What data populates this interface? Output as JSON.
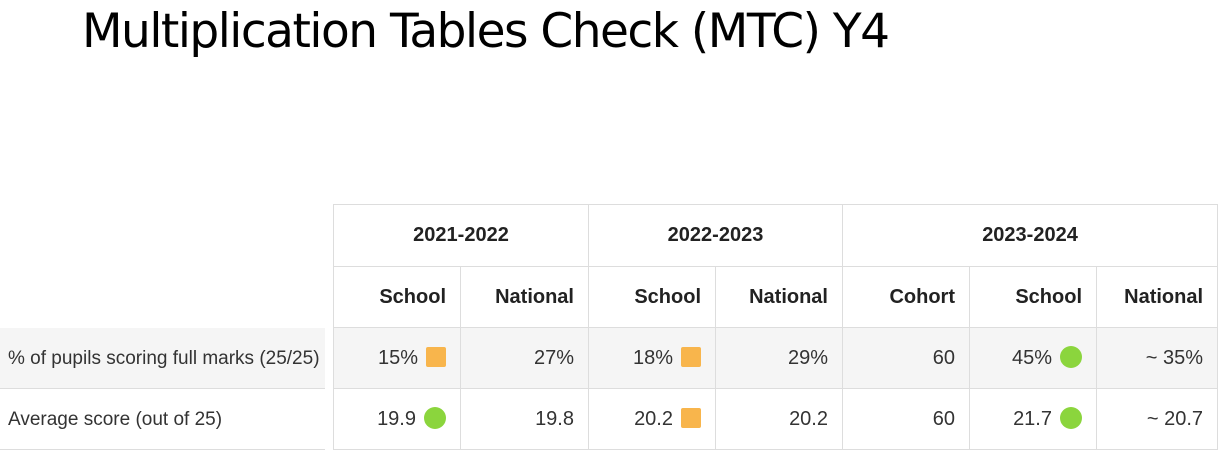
{
  "title": "Multiplication Tables Check (MTC) Y4",
  "colors": {
    "amber": "#f8b54c",
    "green": "#8bd53d"
  },
  "years": [
    "2021-2022",
    "2022-2023",
    "2023-2024"
  ],
  "subheaders": {
    "y2122_school": "School",
    "y2122_national": "National",
    "y2223_school": "School",
    "y2223_national": "National",
    "y2324_cohort": "Cohort",
    "y2324_school": "School",
    "y2324_national": "National"
  },
  "rows": [
    {
      "label": "% of pupils scoring full marks (25/25)",
      "y2122_school": "15%",
      "y2122_school_marker": "amber-square-icon",
      "y2122_national": "27%",
      "y2223_school": "18%",
      "y2223_school_marker": "amber-square-icon",
      "y2223_national": "29%",
      "y2324_cohort": "60",
      "y2324_school": "45%",
      "y2324_school_marker": "green-circle-icon",
      "y2324_national": "~ 35%"
    },
    {
      "label": "Average score (out of 25)",
      "y2122_school": "19.9",
      "y2122_school_marker": "green-circle-icon",
      "y2122_national": "19.8",
      "y2223_school": "20.2",
      "y2223_school_marker": "amber-square-icon",
      "y2223_national": "20.2",
      "y2324_cohort": "60",
      "y2324_school": "21.7",
      "y2324_school_marker": "green-circle-icon",
      "y2324_national": "~ 20.7"
    }
  ]
}
